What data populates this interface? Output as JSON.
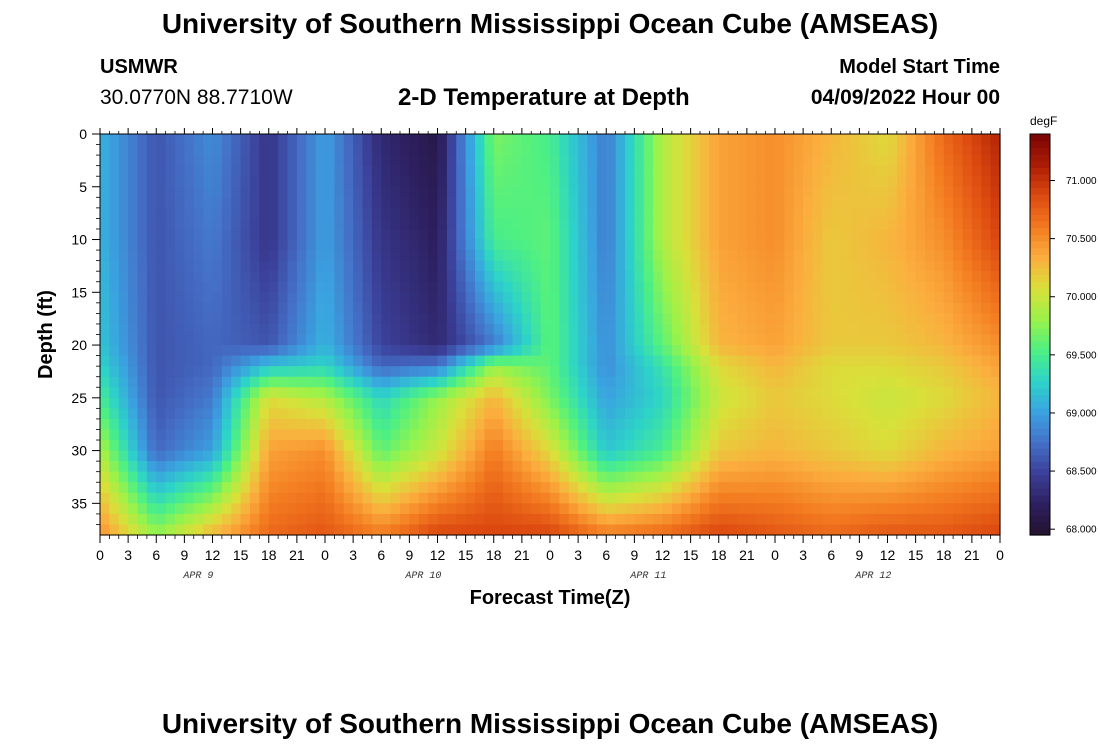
{
  "header": {
    "title": "University of Southern Mississippi Ocean Cube (AMSEAS)",
    "station": "USMWR",
    "coordinates": "30.0770N  88.7710W",
    "subtitle": "2-D Temperature at Depth",
    "model_start_label": "Model Start Time",
    "model_start_value": "04/09/2022 Hour 00"
  },
  "footer": {
    "title": "University of Southern Mississippi Ocean Cube (AMSEAS)"
  },
  "chart_data": {
    "type": "heatmap",
    "title": "2-D Temperature at Depth",
    "xlabel": "Forecast Time(Z)",
    "ylabel": "Depth (ft)",
    "x_ticks": [
      "0",
      "3",
      "6",
      "9",
      "12",
      "15",
      "18",
      "21",
      "0",
      "3",
      "6",
      "9",
      "12",
      "15",
      "18",
      "21",
      "0",
      "3",
      "6",
      "9",
      "12",
      "15",
      "18",
      "21",
      "0",
      "3",
      "6",
      "9",
      "12",
      "15",
      "18",
      "21",
      "0"
    ],
    "date_labels": [
      "APR 9",
      "APR 10",
      "APR 11",
      "APR 12"
    ],
    "xlim_hours": [
      0,
      96
    ],
    "y_ticks": [
      "0",
      "5",
      "10",
      "15",
      "20",
      "25",
      "30",
      "35"
    ],
    "ylim": [
      0,
      38
    ],
    "colorbar": {
      "units": "degF",
      "range": [
        67.95,
        71.4
      ],
      "labels": [
        "71.000",
        "70.500",
        "70.000",
        "69.500",
        "69.000",
        "68.500",
        "68.000"
      ],
      "label_values": [
        71.0,
        70.5,
        70.0,
        69.5,
        69.0,
        68.5,
        68.0
      ],
      "colormap": [
        "#23112c",
        "#2d1f5f",
        "#3b3f98",
        "#4570c8",
        "#3aa3e0",
        "#2dd3c8",
        "#4ef083",
        "#9af24a",
        "#d9e03a",
        "#fbae3e",
        "#f37a20",
        "#dd4a10",
        "#ab1d05",
        "#7a0403"
      ]
    },
    "grid": {
      "hours": [
        0,
        6,
        12,
        18,
        24,
        30,
        36,
        42,
        48,
        54,
        60,
        66,
        72,
        78,
        84,
        90,
        96
      ],
      "depths": [
        0,
        10,
        20,
        22,
        25,
        30,
        38
      ],
      "values": [
        [
          69.1,
          68.6,
          68.9,
          68.4,
          69.0,
          68.3,
          68.1,
          69.7,
          69.5,
          68.8,
          69.9,
          70.4,
          70.5,
          70.3,
          70.1,
          70.7,
          71.1
        ],
        [
          69.1,
          68.6,
          68.8,
          68.4,
          69.0,
          68.4,
          68.2,
          69.5,
          69.6,
          68.8,
          69.9,
          70.4,
          70.5,
          70.2,
          70.3,
          70.5,
          70.9
        ],
        [
          69.2,
          68.6,
          68.7,
          68.6,
          69.1,
          68.5,
          68.3,
          68.8,
          69.6,
          68.9,
          69.6,
          70.3,
          70.4,
          70.2,
          70.2,
          70.3,
          70.5
        ],
        [
          69.3,
          68.6,
          68.7,
          69.2,
          69.3,
          68.7,
          68.8,
          69.8,
          69.6,
          68.9,
          69.4,
          70.1,
          70.3,
          70.1,
          70.1,
          70.2,
          70.4
        ],
        [
          69.5,
          68.6,
          68.8,
          70.1,
          69.9,
          69.3,
          69.8,
          70.3,
          69.7,
          69.0,
          69.3,
          70.0,
          70.2,
          70.1,
          70.0,
          70.1,
          70.3
        ],
        [
          69.9,
          68.7,
          69.0,
          70.4,
          70.5,
          69.6,
          70.0,
          70.6,
          70.1,
          69.2,
          69.5,
          70.2,
          70.3,
          70.2,
          70.1,
          70.3,
          70.4
        ],
        [
          70.5,
          69.8,
          70.3,
          70.7,
          70.8,
          70.6,
          70.9,
          70.9,
          70.9,
          70.6,
          70.7,
          70.9,
          70.8,
          70.7,
          70.8,
          70.8,
          70.9
        ]
      ]
    }
  }
}
